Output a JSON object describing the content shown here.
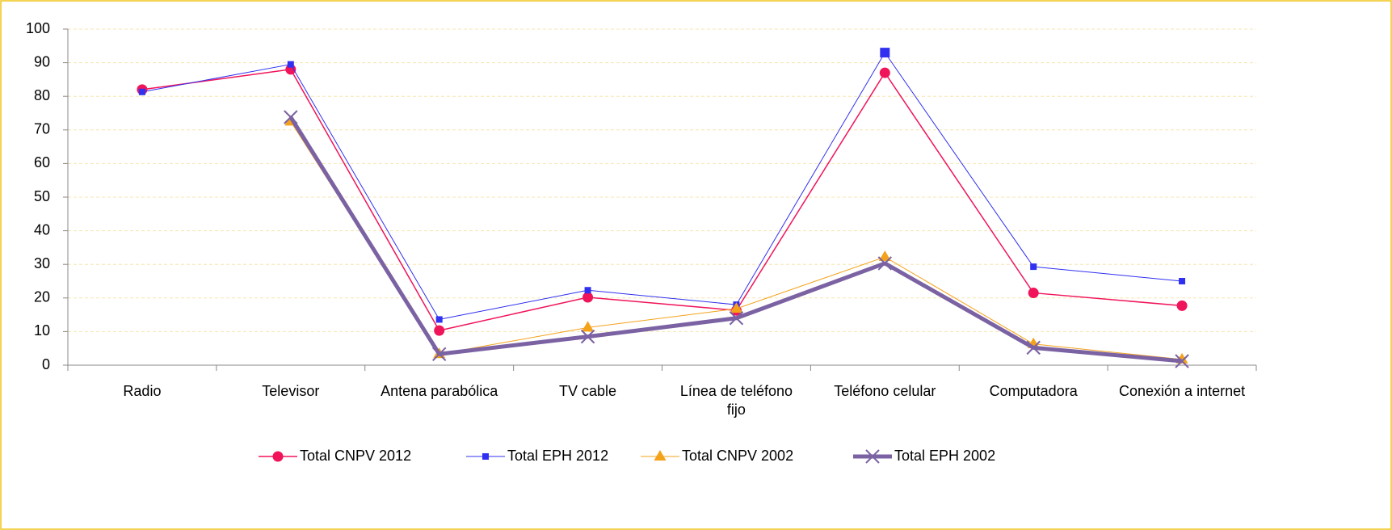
{
  "chart_data": {
    "type": "line",
    "categories": [
      "Radio",
      "Televisor",
      "Antena parabólica",
      "TV cable",
      "Línea de teléfono fijo",
      "Teléfono celular",
      "Computadora",
      "Conexión a internet"
    ],
    "series": [
      {
        "name": "Total CNPV 2012",
        "color": "#f0145a",
        "marker": "circle",
        "values": [
          82,
          88,
          10.3,
          20.2,
          16.3,
          87,
          21.5,
          17.7
        ]
      },
      {
        "name": "Total EPH 2012",
        "color": "#3030f0",
        "marker": "square",
        "values": [
          81.3,
          89.5,
          13.6,
          22.3,
          18,
          93,
          29.3,
          25
        ]
      },
      {
        "name": "Total CNPV 2002",
        "color": "#f5a21b",
        "marker": "triangle",
        "values": [
          null,
          72.5,
          3.3,
          11.2,
          16.8,
          32.2,
          6.3,
          1.7
        ]
      },
      {
        "name": "Total EPH 2002",
        "color": "#7b62a3",
        "marker": "x",
        "values": [
          null,
          73.8,
          3.3,
          8.5,
          14,
          30.3,
          5.2,
          1.2
        ]
      }
    ],
    "ylim": [
      0,
      100
    ],
    "yticks": [
      0,
      10,
      20,
      30,
      40,
      50,
      60,
      70,
      80,
      90,
      100
    ],
    "grid": true,
    "legend": "bottom"
  }
}
